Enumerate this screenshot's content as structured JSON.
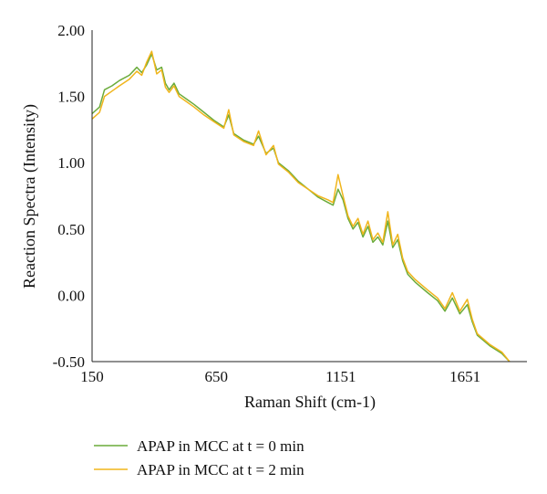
{
  "chart_data": {
    "type": "line",
    "title": "",
    "xlabel": "Raman Shift (cm-1)",
    "ylabel": "Reaction Spectra (Intensity)",
    "xlim": [
      150,
      1900
    ],
    "ylim": [
      -0.5,
      2.0
    ],
    "x_ticks": [
      150,
      650,
      1151,
      1651
    ],
    "x_tick_labels": [
      "150",
      "650",
      "1151",
      "1651"
    ],
    "y_ticks": [
      -0.5,
      0.0,
      0.5,
      1.0,
      1.5,
      2.0
    ],
    "y_tick_labels": [
      "-0.50",
      "0.00",
      "0.50",
      "1.00",
      "1.50",
      "2.00"
    ],
    "grid": false,
    "legend_position": "bottom-left",
    "series": [
      {
        "name": "APAP in MCC at t = 0 min",
        "color": "#6aab3a",
        "x": [
          150,
          180,
          200,
          230,
          260,
          300,
          330,
          350,
          370,
          390,
          410,
          430,
          445,
          460,
          480,
          500,
          530,
          560,
          600,
          640,
          680,
          700,
          720,
          760,
          800,
          820,
          850,
          880,
          900,
          940,
          980,
          1020,
          1060,
          1100,
          1120,
          1140,
          1160,
          1180,
          1200,
          1220,
          1240,
          1260,
          1280,
          1300,
          1320,
          1340,
          1360,
          1380,
          1400,
          1420,
          1450,
          1500,
          1540,
          1570,
          1600,
          1630,
          1660,
          1680,
          1700,
          1750,
          1800,
          1830
        ],
        "y": [
          1.37,
          1.42,
          1.55,
          1.58,
          1.62,
          1.66,
          1.72,
          1.68,
          1.74,
          1.82,
          1.7,
          1.72,
          1.6,
          1.55,
          1.6,
          1.52,
          1.48,
          1.44,
          1.38,
          1.32,
          1.27,
          1.36,
          1.22,
          1.17,
          1.14,
          1.2,
          1.07,
          1.11,
          1.0,
          0.94,
          0.86,
          0.8,
          0.74,
          0.7,
          0.68,
          0.8,
          0.72,
          0.58,
          0.5,
          0.55,
          0.44,
          0.52,
          0.4,
          0.44,
          0.38,
          0.56,
          0.36,
          0.42,
          0.26,
          0.16,
          0.1,
          0.02,
          -0.04,
          -0.12,
          -0.02,
          -0.14,
          -0.07,
          -0.2,
          -0.3,
          -0.38,
          -0.44,
          -0.5
        ]
      },
      {
        "name": "APAP in MCC at t = 2 min",
        "color": "#f0b51c",
        "x": [
          150,
          180,
          200,
          230,
          260,
          300,
          330,
          350,
          370,
          390,
          410,
          430,
          445,
          460,
          480,
          500,
          530,
          560,
          600,
          640,
          680,
          700,
          720,
          760,
          800,
          820,
          850,
          880,
          900,
          940,
          980,
          1020,
          1060,
          1100,
          1120,
          1140,
          1160,
          1180,
          1200,
          1220,
          1240,
          1260,
          1280,
          1300,
          1320,
          1340,
          1360,
          1380,
          1400,
          1420,
          1450,
          1500,
          1540,
          1570,
          1600,
          1630,
          1660,
          1680,
          1700,
          1750,
          1800,
          1830
        ],
        "y": [
          1.33,
          1.38,
          1.5,
          1.54,
          1.58,
          1.63,
          1.69,
          1.66,
          1.76,
          1.84,
          1.67,
          1.7,
          1.57,
          1.53,
          1.58,
          1.5,
          1.46,
          1.42,
          1.36,
          1.31,
          1.26,
          1.4,
          1.21,
          1.16,
          1.13,
          1.24,
          1.06,
          1.13,
          0.99,
          0.93,
          0.85,
          0.8,
          0.75,
          0.72,
          0.7,
          0.91,
          0.75,
          0.6,
          0.52,
          0.58,
          0.46,
          0.56,
          0.42,
          0.47,
          0.4,
          0.63,
          0.38,
          0.46,
          0.28,
          0.18,
          0.12,
          0.04,
          -0.02,
          -0.1,
          0.02,
          -0.12,
          -0.03,
          -0.18,
          -0.29,
          -0.37,
          -0.43,
          -0.5
        ]
      }
    ]
  }
}
